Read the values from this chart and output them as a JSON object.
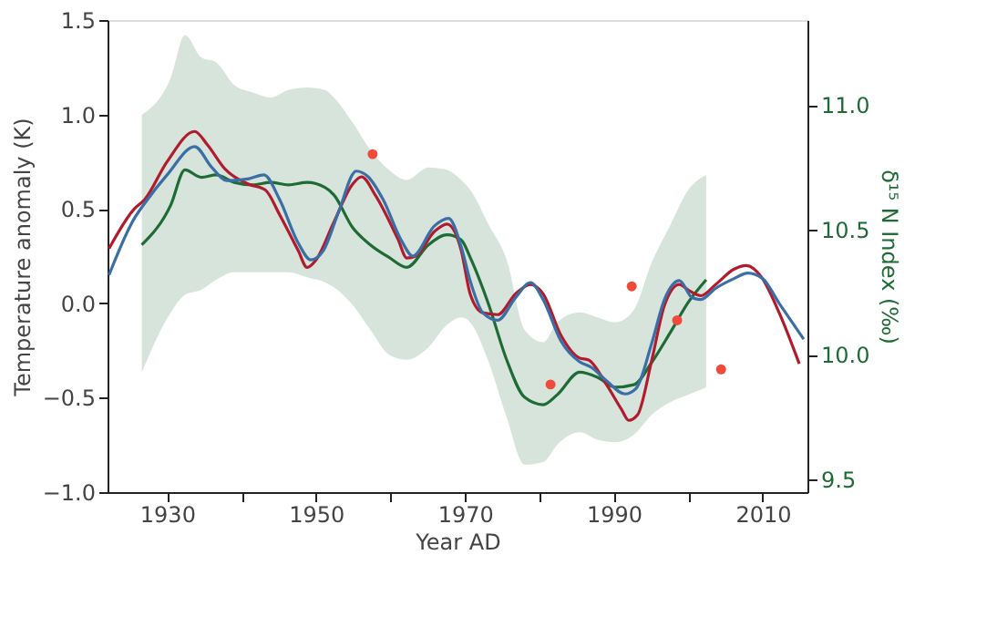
{
  "chart_data": {
    "type": "line",
    "xlabel": "Year AD",
    "ylabel": "Temperature anomaly (K)",
    "y2label": "δ¹⁵ N Index (‰)",
    "xlim": [
      1922,
      2016
    ],
    "xticks": [
      1930,
      {
        "value": 1940,
        "label": null
      },
      1950,
      {
        "value": 1960,
        "label": null
      },
      1970,
      {
        "value": 1980,
        "label": null
      },
      1990,
      {
        "value": 2000,
        "label": null
      },
      2010
    ],
    "ylim": [
      -1.0,
      1.5
    ],
    "yticks": [
      {
        "value": -1.0,
        "label": "−1.0"
      },
      {
        "value": -0.5,
        "label": "−0.5"
      },
      {
        "value": 0,
        "label": "0.0"
      },
      0.5,
      {
        "value": 1.0,
        "label": "1.0"
      },
      1.5
    ],
    "y2lim": [
      9.45,
      11.34
    ],
    "y2ticks": [
      9.5,
      {
        "value": 10.0,
        "label": "10.0"
      },
      10.5,
      {
        "value": 11.0,
        "label": "11.0"
      }
    ],
    "grid": false,
    "series": [
      {
        "color": "#b01c2e",
        "x": [
          1922.2,
          1925.6,
          1927,
          1930,
          1933.7,
          1935.4,
          1937.8,
          1941,
          1943.2,
          1945.1,
          1947.6,
          1948.8,
          1950,
          1952.4,
          1954.9,
          1956.1,
          1958,
          1961,
          1962.2,
          1963.4,
          1965.9,
          1967.6,
          1969.5,
          1970.7,
          1972.4,
          1974.4,
          1976.8,
          1978.8,
          1980.5,
          1982.9,
          1985.4,
          1986.6,
          1989,
          1991,
          1992,
          1993.2,
          1995.1,
          1996.8,
          1998.8,
          2000,
          2001.7,
          2003.7,
          2006.1,
          2007.8,
          2009.8,
          2012.2,
          2014.9
        ],
        "values": [
          0.29,
          0.5,
          0.55,
          0.75,
          0.91,
          0.84,
          0.71,
          0.63,
          0.6,
          0.47,
          0.28,
          0.19,
          0.23,
          0.43,
          0.63,
          0.67,
          0.57,
          0.34,
          0.24,
          0.25,
          0.38,
          0.42,
          0.28,
          0.05,
          -0.05,
          -0.06,
          0.05,
          0.1,
          0.05,
          -0.17,
          -0.29,
          -0.3,
          -0.43,
          -0.56,
          -0.62,
          -0.59,
          -0.3,
          -0.01,
          0.1,
          0.07,
          0.04,
          0.1,
          0.18,
          0.2,
          0.14,
          -0.05,
          -0.32
        ]
      },
      {
        "color": "#3a6ea5",
        "x": [
          1922.2,
          1925.6,
          1927,
          1930,
          1933.7,
          1936,
          1938,
          1941,
          1943,
          1945.1,
          1947.6,
          1949.3,
          1951,
          1953,
          1955.4,
          1957,
          1959,
          1961.5,
          1963,
          1965.9,
          1967.8,
          1969.5,
          1970.7,
          1972.4,
          1974.4,
          1976.8,
          1978.8,
          1980.5,
          1982.9,
          1985.4,
          1987,
          1989,
          1991.5,
          1993,
          1995.1,
          1996.8,
          1998.8,
          2000.5,
          2001.7,
          2003.7,
          2006.1,
          2008,
          2010,
          2012.2,
          2015.5
        ],
        "values": [
          0.15,
          0.45,
          0.53,
          0.68,
          0.83,
          0.72,
          0.65,
          0.66,
          0.68,
          0.55,
          0.32,
          0.23,
          0.28,
          0.48,
          0.7,
          0.67,
          0.55,
          0.33,
          0.25,
          0.41,
          0.45,
          0.3,
          0.12,
          -0.05,
          -0.09,
          0.03,
          0.11,
          0.02,
          -0.2,
          -0.31,
          -0.34,
          -0.41,
          -0.48,
          -0.45,
          -0.21,
          0.02,
          0.12,
          0.03,
          0.02,
          0.08,
          0.13,
          0.16,
          0.13,
          0.0,
          -0.19
        ]
      },
      {
        "axis": "y2",
        "color": "#1f6b35",
        "x": [
          1926.6,
          1930.5,
          1932.4,
          1934.6,
          1936.6,
          1939,
          1941.5,
          1943.9,
          1946.3,
          1948.8,
          1951.2,
          1952.4,
          1954.9,
          1957.3,
          1959.8,
          1962.2,
          1965.1,
          1967.6,
          1969.5,
          1970.7,
          1973.2,
          1975.6,
          1978,
          1980.5,
          1982.4,
          1985.4,
          1987.8,
          1990.2,
          1992.7,
          1995.1,
          1997.6,
          2000,
          2002.4
        ],
        "values": [
          10.44,
          10.6,
          10.74,
          10.71,
          10.72,
          10.69,
          10.68,
          10.69,
          10.68,
          10.69,
          10.67,
          10.64,
          10.51,
          10.44,
          10.39,
          10.35,
          10.44,
          10.48,
          10.46,
          10.39,
          10.2,
          9.98,
          9.83,
          9.8,
          9.84,
          9.93,
          9.91,
          9.87,
          9.88,
          9.97,
          10.09,
          10.21,
          10.3
        ],
        "upper": [
          10.96,
          11.11,
          11.28,
          11.19,
          11.17,
          11.08,
          11.05,
          11.03,
          11.06,
          11.07,
          11.06,
          11.03,
          10.93,
          10.82,
          10.74,
          10.7,
          10.75,
          10.74,
          10.7,
          10.66,
          10.52,
          10.38,
          10.1,
          10.05,
          10.13,
          10.17,
          10.15,
          10.13,
          10.18,
          10.37,
          10.52,
          10.66,
          10.72
        ],
        "lower": [
          9.93,
          10.17,
          10.24,
          10.26,
          10.3,
          10.33,
          10.33,
          10.33,
          10.33,
          10.31,
          10.29,
          10.27,
          10.2,
          10.1,
          10.0,
          9.98,
          10.03,
          10.12,
          10.15,
          10.13,
          9.97,
          9.75,
          9.56,
          9.57,
          9.64,
          9.69,
          9.66,
          9.65,
          9.68,
          9.76,
          9.81,
          9.84,
          9.87
        ]
      },
      {
        "type": "scatter",
        "color": "#f04a3a",
        "x": [
          1957.6,
          1981.5,
          1992.4,
          1998.5,
          2004.4
        ],
        "values": [
          0.79,
          -0.43,
          0.09,
          -0.09,
          -0.35
        ]
      }
    ]
  }
}
